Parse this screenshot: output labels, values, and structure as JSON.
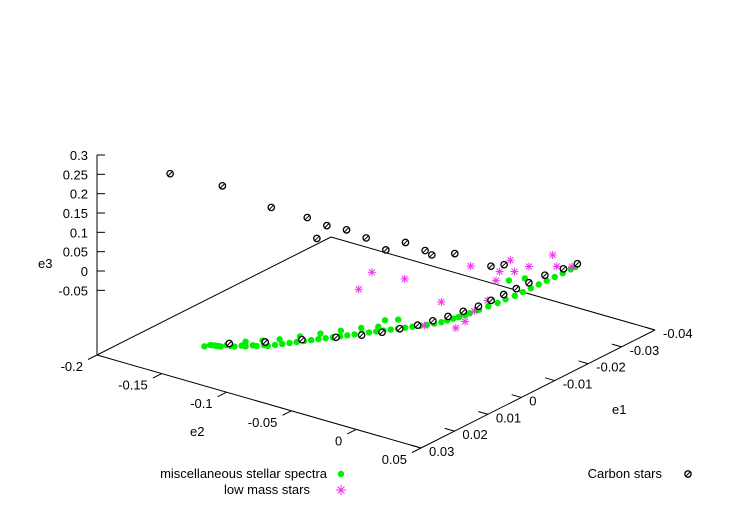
{
  "chart_data": {
    "type": "scatter",
    "dimensions": 3,
    "axes": {
      "e1": {
        "label": "e1",
        "range": [
          -0.04,
          0.03
        ],
        "ticks": [
          "-0.04",
          "-0.03",
          "-0.02",
          "-0.01",
          "0",
          "0.01",
          "0.02",
          "0.03"
        ]
      },
      "e2": {
        "label": "e2",
        "range": [
          -0.2,
          0.05
        ],
        "ticks": [
          "-0.2",
          "-0.15",
          "-0.1",
          "-0.05",
          "0",
          "0.05"
        ]
      },
      "e3": {
        "label": "e3",
        "range": [
          -0.1,
          0.3
        ],
        "ticks": [
          "-0.05",
          "0",
          "0.05",
          "0.1",
          "0.15",
          "0.2",
          "0.25",
          "0.3"
        ]
      }
    },
    "legend": {
      "placement": "bottom"
    },
    "series": [
      {
        "name": "miscellaneous stellar spectra",
        "color": "#00ee00",
        "marker": "filled-circle",
        "points": [
          [
            -0.005,
            -0.02,
            0.01
          ],
          [
            -0.006,
            -0.018,
            0.012
          ],
          [
            -0.007,
            -0.016,
            0.014
          ],
          [
            -0.008,
            -0.014,
            0.016
          ],
          [
            -0.009,
            -0.013,
            0.018
          ],
          [
            -0.011,
            -0.011,
            0.02
          ],
          [
            -0.013,
            -0.009,
            0.022
          ],
          [
            -0.015,
            -0.007,
            0.024
          ],
          [
            -0.017,
            -0.006,
            0.026
          ],
          [
            -0.019,
            -0.004,
            0.028
          ],
          [
            -0.021,
            -0.003,
            0.03
          ],
          [
            -0.023,
            -0.002,
            0.032
          ],
          [
            -0.025,
            -0.001,
            0.034
          ],
          [
            -0.027,
            0.0,
            0.036
          ],
          [
            -0.029,
            0.001,
            0.038
          ],
          [
            -0.031,
            0.002,
            0.04
          ],
          [
            -0.033,
            0.003,
            0.042
          ],
          [
            -0.034,
            0.004,
            0.045
          ],
          [
            -0.022,
            -0.004,
            0.06
          ],
          [
            -0.018,
            -0.006,
            0.07
          ],
          [
            -0.004,
            -0.022,
            0.008
          ],
          [
            -0.003,
            -0.025,
            0.006
          ],
          [
            -0.002,
            -0.028,
            0.004
          ],
          [
            -0.001,
            -0.031,
            0.003
          ],
          [
            0.0,
            -0.034,
            0.002
          ],
          [
            0.001,
            -0.037,
            0.001
          ],
          [
            0.002,
            -0.04,
            0.0
          ],
          [
            0.003,
            -0.043,
            -0.001
          ],
          [
            0.004,
            -0.046,
            -0.002
          ],
          [
            0.005,
            -0.049,
            -0.003
          ],
          [
            0.006,
            -0.052,
            -0.004
          ],
          [
            0.007,
            -0.055,
            -0.005
          ],
          [
            0.008,
            -0.058,
            -0.006
          ],
          [
            0.009,
            -0.061,
            -0.007
          ],
          [
            0.01,
            -0.064,
            -0.008
          ],
          [
            0.011,
            -0.067,
            -0.009
          ],
          [
            0.012,
            -0.07,
            -0.01
          ],
          [
            0.013,
            -0.073,
            -0.011
          ],
          [
            0.014,
            -0.076,
            -0.012
          ],
          [
            0.015,
            -0.079,
            -0.013
          ],
          [
            0.016,
            -0.082,
            -0.014
          ],
          [
            0.017,
            -0.085,
            -0.015
          ],
          [
            0.018,
            -0.088,
            -0.016
          ],
          [
            0.019,
            -0.091,
            -0.017
          ],
          [
            0.02,
            -0.094,
            -0.018
          ],
          [
            0.02,
            -0.097,
            -0.019
          ],
          [
            0.021,
            -0.1,
            -0.02
          ],
          [
            0.021,
            -0.103,
            -0.021
          ],
          [
            0.022,
            -0.106,
            -0.022
          ],
          [
            0.022,
            -0.109,
            -0.023
          ],
          [
            0.023,
            -0.112,
            -0.024
          ],
          [
            0.023,
            -0.115,
            -0.025
          ],
          [
            0.023,
            -0.118,
            -0.026
          ],
          [
            0.024,
            -0.12,
            -0.027
          ],
          [
            0.024,
            -0.122,
            -0.028
          ],
          [
            0.024,
            -0.124,
            -0.029
          ],
          [
            0.024,
            -0.126,
            -0.03
          ],
          [
            0.024,
            -0.128,
            -0.031
          ],
          [
            0.025,
            -0.13,
            -0.032
          ],
          [
            0.004,
            -0.05,
            0.004
          ],
          [
            0.006,
            -0.058,
            0.002
          ],
          [
            0.009,
            -0.066,
            0.0
          ],
          [
            0.012,
            -0.074,
            -0.002
          ],
          [
            0.015,
            -0.082,
            -0.004
          ],
          [
            0.018,
            -0.09,
            -0.006
          ],
          [
            0.02,
            -0.098,
            -0.008
          ],
          [
            0.022,
            -0.106,
            -0.01
          ],
          [
            0.0,
            -0.045,
            0.01
          ],
          [
            0.002,
            -0.05,
            0.012
          ],
          [
            -0.006,
            -0.014,
            0.02
          ],
          [
            -0.01,
            -0.01,
            0.025
          ]
        ]
      },
      {
        "name": "low mass stars",
        "color": "#ee33ee",
        "marker": "asterisk",
        "points": [
          [
            -0.012,
            -0.02,
            0.12
          ],
          [
            -0.016,
            -0.008,
            0.1
          ],
          [
            -0.02,
            -0.01,
            0.11
          ],
          [
            -0.024,
            -0.006,
            0.08
          ],
          [
            -0.028,
            0.002,
            0.1
          ],
          [
            -0.033,
            0.004,
            0.05
          ],
          [
            -0.014,
            -0.012,
            0.03
          ],
          [
            -0.01,
            -0.012,
            0.02
          ],
          [
            -0.008,
            -0.014,
            0.0
          ],
          [
            -0.006,
            -0.016,
            -0.01
          ],
          [
            -0.004,
            -0.022,
            0.06
          ],
          [
            0.0,
            -0.04,
            0.12
          ],
          [
            0.004,
            -0.055,
            0.14
          ],
          [
            0.006,
            -0.06,
            0.1
          ],
          [
            -0.002,
            -0.03,
            0.0
          ],
          [
            -0.018,
            -0.016,
            0.06
          ],
          [
            -0.022,
            -0.012,
            0.07
          ],
          [
            -0.03,
            0.0,
            0.06
          ]
        ]
      },
      {
        "name": "Carbon stars",
        "color": "#000000",
        "marker": "open-circle",
        "points": [
          [
            0.012,
            -0.19,
            0.3
          ],
          [
            0.008,
            -0.16,
            0.28
          ],
          [
            0.005,
            -0.13,
            0.24
          ],
          [
            0.002,
            -0.11,
            0.22
          ],
          [
            0.0,
            -0.1,
            0.2
          ],
          [
            -0.002,
            -0.09,
            0.19
          ],
          [
            0.003,
            -0.1,
            0.18
          ],
          [
            -0.004,
            -0.08,
            0.17
          ],
          [
            -0.006,
            -0.07,
            0.14
          ],
          [
            -0.008,
            -0.06,
            0.16
          ],
          [
            -0.01,
            -0.05,
            0.14
          ],
          [
            -0.012,
            -0.05,
            0.12
          ],
          [
            -0.015,
            -0.04,
            0.12
          ],
          [
            -0.02,
            -0.025,
            0.08
          ],
          [
            -0.022,
            -0.02,
            0.08
          ],
          [
            0.023,
            -0.116,
            -0.02
          ],
          [
            0.02,
            -0.096,
            -0.01
          ],
          [
            0.016,
            -0.078,
            -0.004
          ],
          [
            0.012,
            -0.062,
            0.0
          ],
          [
            0.009,
            -0.05,
            0.004
          ],
          [
            0.006,
            -0.042,
            0.006
          ],
          [
            0.003,
            -0.036,
            0.008
          ],
          [
            0.0,
            -0.03,
            0.01
          ],
          [
            -0.003,
            -0.026,
            0.012
          ],
          [
            -0.006,
            -0.022,
            0.014
          ],
          [
            -0.009,
            -0.018,
            0.018
          ],
          [
            -0.012,
            -0.014,
            0.022
          ],
          [
            -0.015,
            -0.012,
            0.026
          ],
          [
            -0.018,
            -0.01,
            0.03
          ],
          [
            -0.021,
            -0.008,
            0.034
          ],
          [
            -0.024,
            -0.006,
            0.038
          ],
          [
            -0.028,
            -0.004,
            0.042
          ],
          [
            -0.032,
            0.0,
            0.045
          ],
          [
            -0.035,
            0.003,
            0.048
          ]
        ]
      }
    ]
  }
}
